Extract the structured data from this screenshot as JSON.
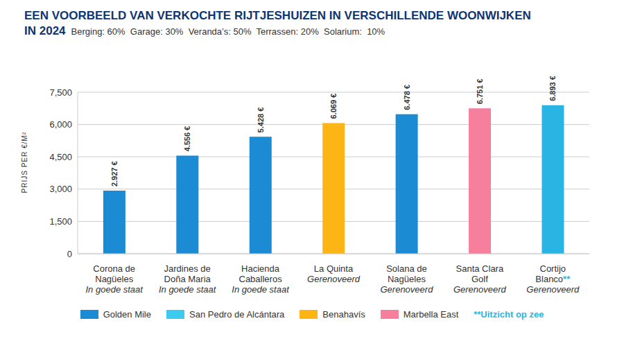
{
  "chart_data": {
    "type": "bar",
    "title": [
      "EEN VOORBEELD VAN VERKOCHTE RIJTJESHUIZEN IN VERSCHILLENDE WOONWIJKEN",
      "IN 2024"
    ],
    "subtitle": "Berging: 60%  Garage: 30%  Veranda’s: 50%  Terrassen: 20%  Solarium:  10%",
    "y_label": "PRIJS PER €/M²",
    "categories": [
      "Corona de Nagüeles",
      "Jardines de Doña Maria",
      "Hacienda Caballeros",
      "La Quinta",
      "Solana de Nagüeles",
      "Santa Clara Golf",
      "Cortijo Blanco**"
    ],
    "category_status": [
      "In goede staat",
      "In goede staat",
      "In goede staat",
      "Gerenoveerd",
      "Gerenoveerd",
      "Gerenoveerd",
      "Gerenoveerd"
    ],
    "values": [
      2927,
      4556,
      5428,
      6069,
      6478,
      6751,
      6893
    ],
    "value_labels": [
      "2.927 €",
      "4.556 €",
      "5.428 €",
      "6.069 €",
      "6.478 €",
      "6.751 €",
      "6.893 €"
    ],
    "colors": [
      "#1B8BD3",
      "#1B8BD3",
      "#1B8BD3",
      "#FDB515",
      "#1B8BD3",
      "#F57F9C",
      "#29B5E3"
    ],
    "legend_entries": [
      {
        "name": "Golden Mile",
        "color": "#1B8BD3"
      },
      {
        "name": "San Pedro de Alcántara",
        "color": "#3CCBEF"
      },
      {
        "name": "Benahavís",
        "color": "#FDB515"
      },
      {
        "name": "Marbella East",
        "color": "#F57F9C"
      }
    ],
    "note": "**Uitzicht op zee",
    "note_color": "#29B5E3",
    "ylim": [
      0,
      7500
    ],
    "yticks": [
      0,
      {
        "value": 1500,
        "label": "1,500"
      },
      {
        "value": 3000,
        "label": "3,000"
      },
      {
        "value": 4500,
        "label": "4,500"
      },
      {
        "value": 6000,
        "label": "6,000"
      },
      {
        "value": 7500,
        "label": "7,500"
      }
    ],
    "grid": true,
    "data_labels": true
  }
}
